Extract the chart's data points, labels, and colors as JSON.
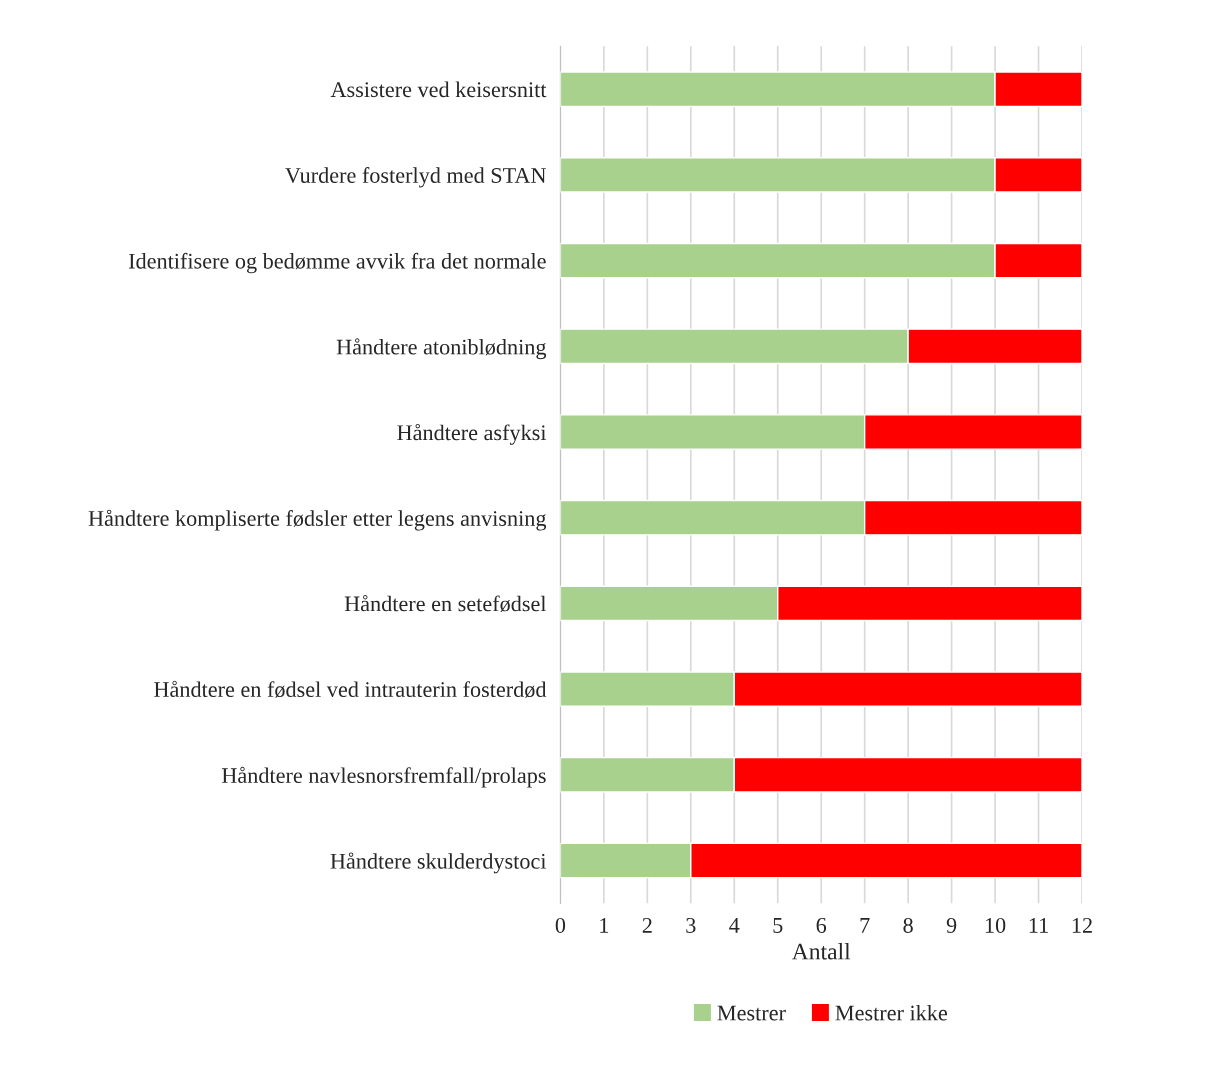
{
  "chart_data": {
    "type": "bar",
    "orientation": "horizontal",
    "stacked": true,
    "categories": [
      "Assistere ved keisersnitt",
      "Vurdere fosterlyd med STAN",
      "Identifisere og bedømme avvik fra det normale",
      "Håndtere atoniblødning",
      "Håndtere asfyksi",
      "Håndtere kompliserte fødsler etter legens anvisning",
      "Håndtere en setefødsel",
      "Håndtere en fødsel ved intrauterin fosterdød",
      "Håndtere navlesnorsfremfall/prolaps",
      "Håndtere skulderdystoci"
    ],
    "series": [
      {
        "name": "Mestrer",
        "color": "#a9d18e",
        "values": [
          10,
          10,
          10,
          8,
          7,
          7,
          5,
          4,
          4,
          3
        ]
      },
      {
        "name": "Mestrer ikke",
        "color": "#ff0000",
        "values": [
          2,
          2,
          2,
          4,
          5,
          5,
          7,
          8,
          8,
          9
        ]
      }
    ],
    "xlabel": "Antall",
    "xlim": [
      0,
      12
    ],
    "xticks": [
      0,
      1,
      2,
      3,
      4,
      5,
      6,
      7,
      8,
      9,
      10,
      11,
      12
    ],
    "grid": "x",
    "legend": "bottom"
  }
}
